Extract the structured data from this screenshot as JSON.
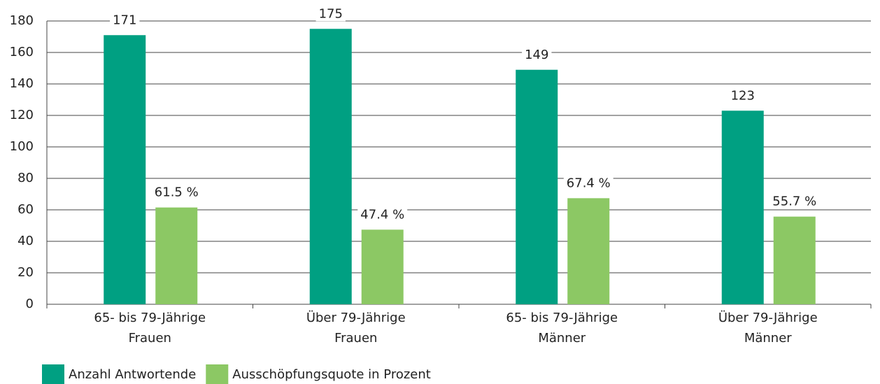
{
  "chart_data": {
    "type": "bar",
    "categories": [
      [
        "65- bis 79-Jährige",
        "Frauen"
      ],
      [
        "Über 79-Jährige",
        "Frauen"
      ],
      [
        "65- bis 79-Jährige",
        "Männer"
      ],
      [
        "Über 79-Jährige",
        "Männer"
      ]
    ],
    "series": [
      {
        "name": "Anzahl Antwortende",
        "color": "#00a082",
        "values": [
          171,
          175,
          149,
          123
        ]
      },
      {
        "name": "Ausschöpfungsquote in Prozent",
        "color": "#8cc864",
        "values": [
          61.5,
          47.4,
          67.4,
          55.7
        ],
        "value_labels": [
          "61.5 %",
          "47.4 %",
          "67.4 %",
          "55.7 %"
        ]
      }
    ],
    "ylim": [
      0,
      180
    ],
    "yticks": [
      0,
      20,
      40,
      60,
      80,
      100,
      120,
      140,
      160,
      180
    ],
    "grid": true,
    "legend": "bottom-left"
  }
}
